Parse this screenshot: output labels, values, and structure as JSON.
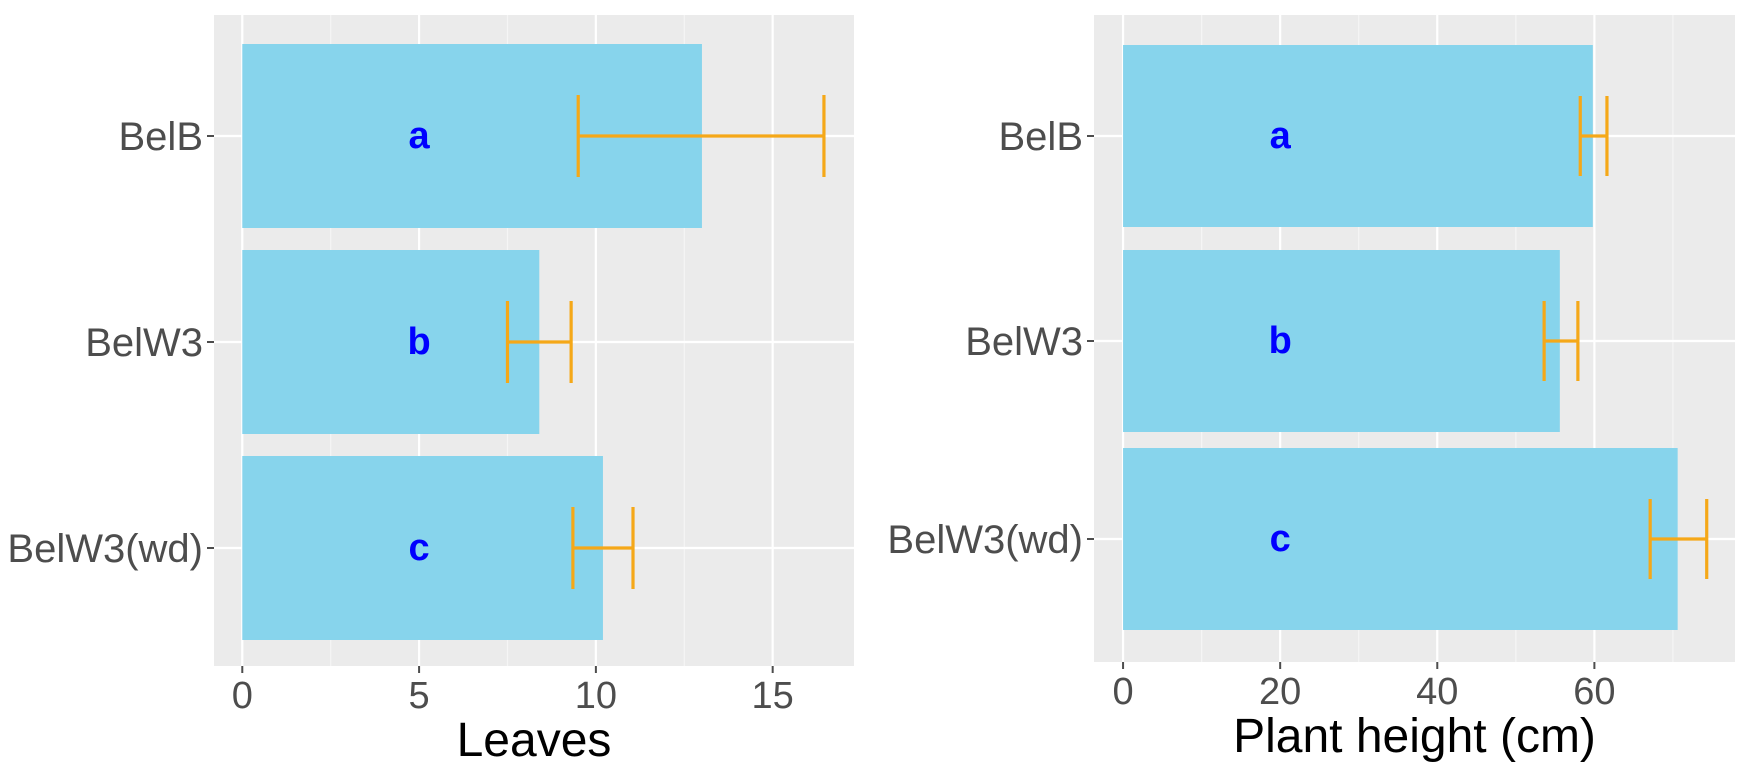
{
  "chart_data": [
    {
      "type": "bar",
      "orientation": "horizontal",
      "categories": [
        "BelB",
        "BelW3",
        "BelW3(wd)"
      ],
      "values": [
        13.0,
        8.4,
        10.2
      ],
      "error_low": [
        9.5,
        7.5,
        9.35
      ],
      "error_high": [
        16.45,
        9.3,
        11.05
      ],
      "group_letters": [
        "a",
        "b",
        "c"
      ],
      "letter_x": 5,
      "xlabel": "Leaves",
      "ylabel": "",
      "xlim": [
        -0.8,
        17.3
      ],
      "ticks": [
        0,
        5,
        10,
        15
      ],
      "tick_labels": [
        "0",
        "5",
        "10",
        "15"
      ],
      "minor_ticks": [
        2.5,
        7.5,
        12.5
      ],
      "grid": true
    },
    {
      "type": "bar",
      "orientation": "horizontal",
      "categories": [
        "BelB",
        "BelW3",
        "BelW3(wd)"
      ],
      "values": [
        59.8,
        55.6,
        70.6
      ],
      "error_low": [
        58.2,
        53.6,
        67.1
      ],
      "error_high": [
        61.6,
        57.9,
        74.3
      ],
      "group_letters": [
        "a",
        "b",
        "c"
      ],
      "letter_x": 20,
      "xlabel": "Plant height (cm)",
      "ylabel": "",
      "xlim": [
        -3.7,
        77.9
      ],
      "ticks": [
        0,
        20,
        40,
        60
      ],
      "tick_labels": [
        "0",
        "20",
        "40",
        "60"
      ],
      "minor_ticks": [
        10,
        30,
        50,
        70
      ],
      "grid": true
    }
  ],
  "colors": {
    "panel_bg": "#ebebeb",
    "grid_major": "#ffffff",
    "grid_minor": "#f5f5f5",
    "bar": "#87d4ec",
    "error_bar": "#f5a818",
    "letter": "#0000ff",
    "tick_text": "#4d4d4d",
    "axis_title": "#000000"
  }
}
